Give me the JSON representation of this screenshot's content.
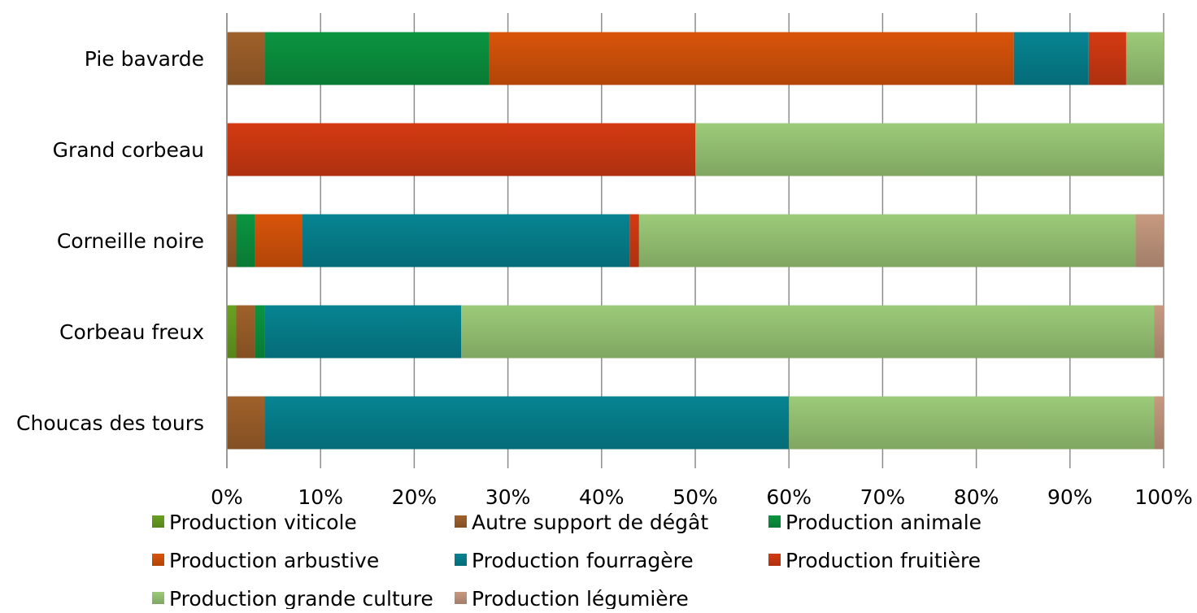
{
  "chart_data": {
    "type": "bar",
    "orientation": "horizontal",
    "stacked": "percent",
    "categories": [
      "Pie bavarde",
      "Grand corbeau",
      "Corneille noire",
      "Corbeau freux",
      "Choucas des tours"
    ],
    "series": [
      {
        "name": "Production viticole",
        "color": "#6aa121",
        "values": [
          0,
          0,
          0,
          1,
          0
        ]
      },
      {
        "name": "Autre support de dégât",
        "color": "#a0612b",
        "values": [
          4,
          0,
          1,
          2,
          4
        ]
      },
      {
        "name": "Production animale",
        "color": "#0b9540",
        "values": [
          24,
          0,
          2,
          1,
          0
        ]
      },
      {
        "name": "Production arbustive",
        "color": "#d9540a",
        "values": [
          56,
          0,
          5,
          0,
          0
        ]
      },
      {
        "name": "Production fourragère",
        "color": "#068492",
        "values": [
          8,
          0,
          35,
          21,
          56
        ]
      },
      {
        "name": "Production fruitière",
        "color": "#d43a12",
        "values": [
          4,
          50,
          1,
          0,
          0
        ]
      },
      {
        "name": "Production grande culture",
        "color": "#9ccb78",
        "values": [
          4,
          50,
          53,
          74,
          39
        ]
      },
      {
        "name": "Production légumière",
        "color": "#c79a80",
        "values": [
          0,
          0,
          3,
          1,
          1
        ]
      }
    ],
    "x_ticks": [
      "0%",
      "10%",
      "20%",
      "30%",
      "40%",
      "50%",
      "60%",
      "70%",
      "80%",
      "90%",
      "100%"
    ],
    "xlim": [
      0,
      100
    ],
    "grid": true,
    "legend_position": "bottom"
  }
}
